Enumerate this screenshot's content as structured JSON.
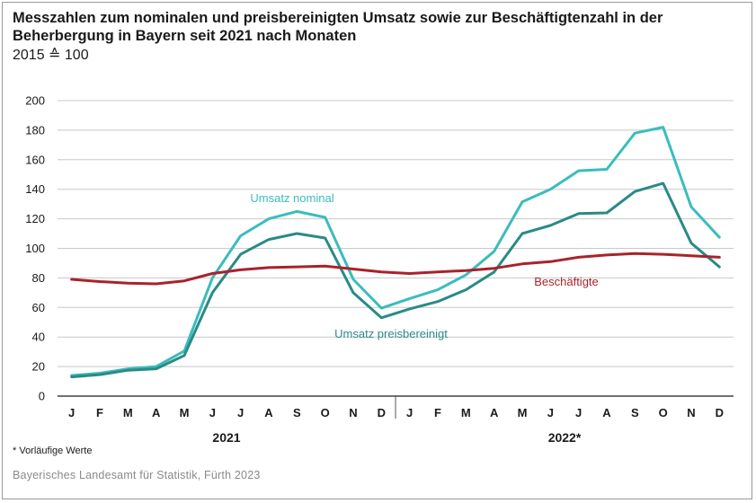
{
  "title": "Messzahlen zum nominalen und preisbereinigten Umsatz sowie zur Beschäftigtenzahl in der Beherbergung in Bayern seit 2021 nach Monaten",
  "subtitle": "2015 ≙ 100",
  "footnote": "* Vorläufige Werte",
  "source": "Bayerisches Landesamt für Statistik, Fürth 2023",
  "chart_data": {
    "type": "line",
    "categories": [
      "J",
      "F",
      "M",
      "A",
      "M",
      "J",
      "J",
      "A",
      "S",
      "O",
      "N",
      "D",
      "J",
      "F",
      "M",
      "A",
      "M",
      "J",
      "J",
      "A",
      "S",
      "O",
      "N",
      "D"
    ],
    "year_labels": [
      "2021",
      "2022*"
    ],
    "ylim": [
      0,
      200
    ],
    "yticks": [
      0,
      20,
      40,
      60,
      80,
      100,
      120,
      140,
      160,
      180,
      200
    ],
    "grid": true,
    "series": [
      {
        "name": "Umsatz nominal",
        "color": "#3bbcbe",
        "values": [
          14,
          15.5,
          18.5,
          20,
          30.5,
          80,
          108.5,
          120,
          125,
          121,
          79,
          59.5,
          66,
          72,
          82,
          98,
          131.5,
          140,
          152.5,
          153.5,
          178,
          182,
          128,
          107.5
        ]
      },
      {
        "name": "Umsatz preisbereinigt",
        "color": "#2a8a87",
        "values": [
          13,
          14.5,
          17.5,
          18.5,
          27.5,
          70,
          96,
          106,
          110,
          107,
          70,
          53,
          59,
          64,
          72,
          84,
          110,
          115.5,
          123.5,
          124,
          138.5,
          144,
          103.5,
          87.5
        ]
      },
      {
        "name": "Beschäftigte",
        "color": "#a8232b",
        "values": [
          79,
          77.5,
          76.5,
          76,
          78,
          83,
          85.5,
          87,
          87.5,
          88,
          86,
          84,
          83,
          84,
          85,
          86.5,
          89.5,
          91,
          94,
          95.5,
          96.5,
          96,
          95,
          94
        ]
      }
    ]
  }
}
